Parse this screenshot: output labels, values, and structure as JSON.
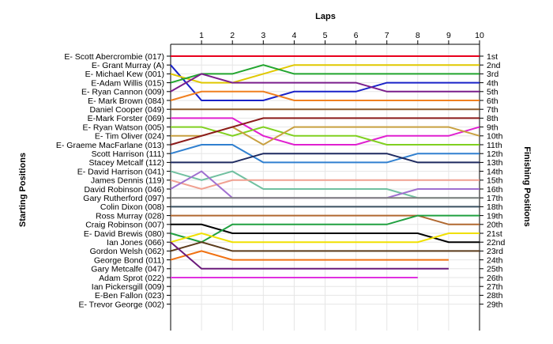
{
  "chart_data": {
    "type": "line",
    "title": "",
    "xlabel": "Laps",
    "ylabel_left": "Starting Positions",
    "ylabel_right": "Finishing Positions",
    "x": [
      0,
      1,
      2,
      3,
      4,
      5,
      6,
      7,
      8,
      9,
      10
    ],
    "xlim": [
      0,
      10
    ],
    "lap_tick_labels": [
      "1",
      "2",
      "3",
      "4",
      "5",
      "6",
      "7",
      "8",
      "9",
      "10"
    ],
    "grid": true,
    "finish_labels": [
      "1st",
      "2nd",
      "3rd",
      "4th",
      "5th",
      "6th",
      "7th",
      "8th",
      "9th",
      "10th",
      "11th",
      "12th",
      "13th",
      "14th",
      "15th",
      "16th",
      "17th",
      "18th",
      "19th",
      "20th",
      "21st",
      "22nd",
      "23rd",
      "24th",
      "25th",
      "26th",
      "27th",
      "28th",
      "29th"
    ],
    "series": [
      {
        "name": "E- Scott Abercrombie (017)",
        "color": "#e8001c",
        "positions": [
          1,
          1,
          1,
          1,
          1,
          1,
          1,
          1,
          1,
          1,
          1
        ]
      },
      {
        "name": "E- Grant Murray (A)",
        "color": "#1a22c8",
        "positions": [
          2,
          6,
          6,
          6,
          5,
          5,
          5,
          4,
          4,
          4,
          4
        ]
      },
      {
        "name": "E- Michael Kew (001)",
        "color": "#e0c800",
        "positions": [
          3,
          4,
          4,
          3,
          2,
          2,
          2,
          2,
          2,
          2,
          2
        ]
      },
      {
        "name": "E-Adam Willis (015)",
        "color": "#22a52e",
        "positions": [
          4,
          3,
          3,
          2,
          3,
          3,
          3,
          3,
          3,
          3,
          3
        ]
      },
      {
        "name": "E- Ryan Cannon (009)",
        "color": "#7a1e8c",
        "positions": [
          5,
          3,
          4,
          4,
          4,
          4,
          4,
          5,
          5,
          5,
          5
        ]
      },
      {
        "name": "E- Mark Brown (084)",
        "color": "#f08020",
        "positions": [
          6,
          5,
          5,
          5,
          6,
          6,
          6,
          6,
          6,
          6,
          6
        ]
      },
      {
        "name": "Daniel Cooper (049)",
        "color": "#8b5a2b",
        "positions": [
          7,
          7,
          7,
          7,
          7,
          7,
          7,
          7,
          7,
          7,
          7
        ]
      },
      {
        "name": "E-Mark Forster (069)",
        "color": "#e020d0",
        "positions": [
          8,
          8,
          8,
          10,
          11,
          11,
          11,
          10,
          10,
          10,
          9
        ]
      },
      {
        "name": "E- Ryan Watson (005)",
        "color": "#80d020",
        "positions": [
          9,
          9,
          10,
          9,
          10,
          10,
          10,
          11,
          11,
          11,
          11
        ]
      },
      {
        "name": "E- Tim Oliver (024)",
        "color": "#c8a040",
        "positions": [
          10,
          10,
          9,
          11,
          9,
          9,
          9,
          9,
          9,
          9,
          10
        ]
      },
      {
        "name": "E- Graeme MacFarlane (013)",
        "color": "#8b1a1a",
        "positions": [
          11,
          10,
          9,
          8,
          8,
          8,
          8,
          8,
          8,
          8,
          8
        ]
      },
      {
        "name": "Scott Harrison (111)",
        "color": "#3080d0",
        "positions": [
          12,
          11,
          11,
          13,
          13,
          13,
          13,
          13,
          12,
          12,
          12
        ]
      },
      {
        "name": "Stacey Metcalf (112)",
        "color": "#1e2a60",
        "positions": [
          13,
          13,
          13,
          12,
          12,
          12,
          12,
          12,
          13,
          13,
          13
        ]
      },
      {
        "name": "E- David Harrison (041)",
        "color": "#70c0a0",
        "positions": [
          14,
          15,
          14,
          16,
          16,
          16,
          16,
          16,
          17,
          17,
          17
        ]
      },
      {
        "name": "James Dennis (119)",
        "color": "#f0a090",
        "positions": [
          15,
          16,
          15,
          15,
          15,
          15,
          15,
          15,
          15,
          15,
          15
        ]
      },
      {
        "name": "David Robinson (046)",
        "color": "#a070d0",
        "positions": [
          16,
          14,
          17,
          17,
          17,
          17,
          17,
          17,
          16,
          16,
          16
        ]
      },
      {
        "name": "Gary Rutherford (097)",
        "color": "#808080",
        "positions": [
          17,
          17,
          17,
          17,
          17,
          17,
          17,
          17,
          17,
          17,
          17
        ]
      },
      {
        "name": "Colin Dixon (008)",
        "color": "#3a5060",
        "positions": [
          18,
          18,
          18,
          18,
          18,
          18,
          18,
          18,
          18,
          18,
          18
        ]
      },
      {
        "name": "Ross Murray (028)",
        "color": "#b06830",
        "positions": [
          19,
          19,
          19,
          19,
          19,
          19,
          19,
          19,
          19,
          20,
          20
        ]
      },
      {
        "name": "Craig Robinson (007)",
        "color": "#000000",
        "positions": [
          20,
          20,
          21,
          21,
          21,
          21,
          21,
          21,
          21,
          22,
          22
        ]
      },
      {
        "name": "E- David Brewis (080)",
        "color": "#20a040",
        "positions": [
          21,
          22,
          20,
          20,
          20,
          20,
          20,
          20,
          19,
          19,
          19
        ]
      },
      {
        "name": "Ian Jones (066)",
        "color": "#f0e000",
        "positions": [
          22,
          21,
          22,
          22,
          22,
          22,
          22,
          22,
          22,
          21,
          21
        ]
      },
      {
        "name": "Gordon Welsh (062)",
        "color": "#5a3a1a",
        "positions": [
          23,
          22,
          23,
          23,
          23,
          23,
          23,
          23,
          23,
          23,
          23
        ]
      },
      {
        "name": "George Bond (011)",
        "color": "#f07010",
        "positions": [
          24,
          23,
          24,
          24,
          24,
          24,
          24,
          24,
          24,
          24,
          null
        ]
      },
      {
        "name": "Gary Metcalfe (047)",
        "color": "#6a1a7a",
        "positions": [
          22,
          25,
          25,
          25,
          25,
          25,
          25,
          25,
          25,
          25,
          null
        ]
      },
      {
        "name": "Adam Sprot (022)",
        "color": "#e030e0",
        "positions": [
          26,
          26,
          26,
          26,
          26,
          26,
          26,
          26,
          26,
          null,
          null
        ]
      },
      {
        "name": "Ian Pickersgill (009)",
        "color": "#999999",
        "positions": []
      },
      {
        "name": "E-Ben Fallon (023)",
        "color": "#999999",
        "positions": []
      },
      {
        "name": "E- Trevor George (002)",
        "color": "#999999",
        "positions": []
      }
    ]
  }
}
